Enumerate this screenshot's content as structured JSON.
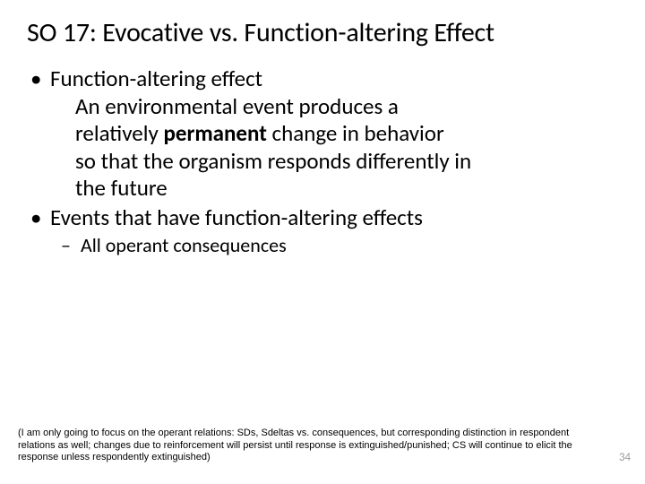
{
  "slide": {
    "title": "SO 17: Evocative vs. Function-altering Effect",
    "bullets": [
      {
        "lead": "Function-altering effect",
        "line1a": "An environmental event produces a",
        "line1b_pre": "relatively ",
        "line1b_bold": "permanent",
        "line1b_post": " change in behavior",
        "line1c": "so that the organism responds differently in",
        "line1d": " the future"
      },
      {
        "lead": "Events that have function-altering effects",
        "sub": "All operant consequences"
      }
    ],
    "footnote": "(I am only going to focus on the operant relations: SDs, Sdeltas vs. consequences, but corresponding distinction in respondent relations as well; changes due to reinforcement will persist until response is extinguished/punished; CS will continue to elicit the response unless respondently extinguished)",
    "page_number": "34"
  },
  "style": {
    "background_color": "#ffffff",
    "text_color": "#000000",
    "page_num_color": "#9a9a9a",
    "title_fontsize": 30,
    "body_fontsize": 25,
    "sub_fontsize": 22,
    "footnote_fontsize": 11,
    "font_family": "Calibri"
  }
}
